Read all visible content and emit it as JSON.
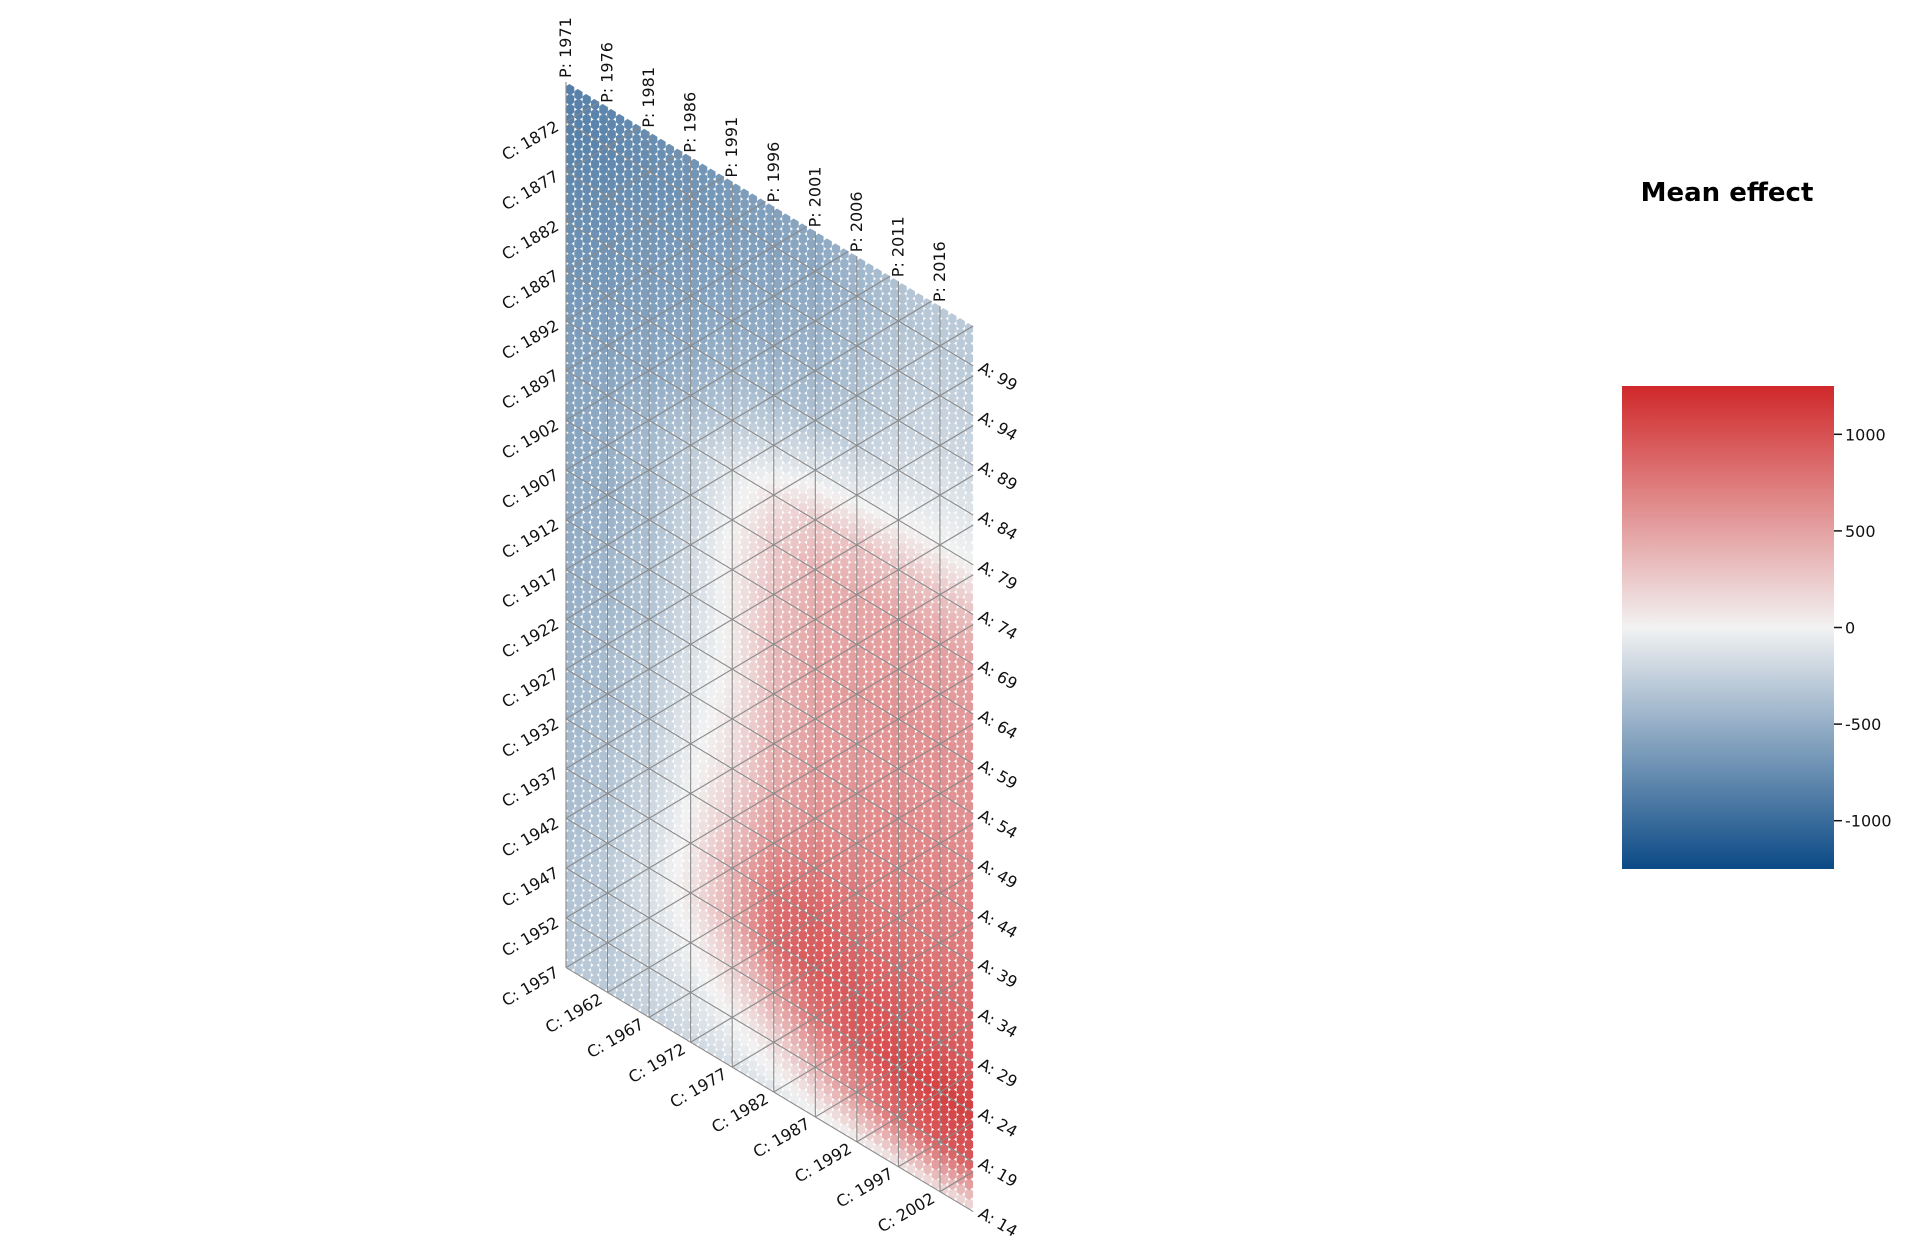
{
  "chart_data": {
    "type": "heatmap",
    "subtype": "hexagonal age-period-cohort diagram",
    "title": "",
    "colorbar": {
      "title": "Mean effect",
      "range": [
        -1250,
        1250
      ],
      "ticks": [
        1000,
        500,
        0,
        -500,
        -1000
      ],
      "tick_labels": [
        "1000",
        "500",
        "0",
        "-500",
        "-1000"
      ],
      "colors": {
        "low": "#0b4a86",
        "mid": "#f2f2f2",
        "high": "#d0282a"
      }
    },
    "period_labels": [
      "P: 1971",
      "P: 1976",
      "P: 1981",
      "P: 1986",
      "P: 1991",
      "P: 1996",
      "P: 2001",
      "P: 2006",
      "P: 2011",
      "P: 2016"
    ],
    "age_labels": [
      "A: 99",
      "A: 94",
      "A: 89",
      "A: 84",
      "A: 79",
      "A: 74",
      "A: 69",
      "A: 64",
      "A: 59",
      "A: 54",
      "A: 49",
      "A: 44",
      "A: 39",
      "A: 34",
      "A: 29",
      "A: 24",
      "A: 19",
      "A: 14"
    ],
    "cohort_labels": [
      "C: 1872",
      "C: 1877",
      "C: 1882",
      "C: 1887",
      "C: 1892",
      "C: 1897",
      "C: 1902",
      "C: 1907",
      "C: 1912",
      "C: 1917",
      "C: 1922",
      "C: 1927",
      "C: 1932",
      "C: 1937",
      "C: 1942",
      "C: 1947",
      "C: 1952",
      "C: 1957",
      "C: 1962",
      "C: 1967",
      "C: 1972",
      "C: 1977",
      "C: 1982",
      "C: 1987",
      "C: 1992",
      "C: 1997",
      "C: 2002"
    ],
    "period_range": [
      1971,
      2020
    ],
    "age_range": [
      14,
      103
    ],
    "grid": true,
    "effect_grid": {
      "description": "approximate mean effect by period (columns) and age (rows)",
      "periods": [
        1971,
        1976,
        1981,
        1986,
        1991,
        1996,
        2001,
        2006,
        2011,
        2016
      ],
      "ages": [
        99,
        94,
        89,
        84,
        79,
        74,
        69,
        64,
        59,
        54,
        49,
        44,
        39,
        34,
        29,
        24,
        19,
        14
      ],
      "values": [
        [
          -850,
          -800,
          -750,
          -700,
          -650,
          -600,
          -550,
          -450,
          -350,
          -300
        ],
        [
          -800,
          -750,
          -700,
          -650,
          -600,
          -550,
          -500,
          -400,
          -300,
          -250
        ],
        [
          -750,
          -700,
          -650,
          -600,
          -550,
          -500,
          -450,
          -350,
          -250,
          -200
        ],
        [
          -700,
          -650,
          -600,
          -550,
          -450,
          -400,
          -350,
          -250,
          -150,
          -100
        ],
        [
          -650,
          -600,
          -550,
          -450,
          -300,
          -200,
          -100,
          -50,
          0,
          0
        ],
        [
          -600,
          -550,
          -450,
          -300,
          -100,
          100,
          250,
          300,
          300,
          300
        ],
        [
          -600,
          -500,
          -400,
          -250,
          0,
          250,
          400,
          450,
          500,
          500
        ],
        [
          -550,
          -500,
          -400,
          -200,
          50,
          300,
          450,
          500,
          550,
          550
        ],
        [
          -550,
          -450,
          -350,
          -200,
          50,
          350,
          500,
          550,
          600,
          600
        ],
        [
          -500,
          -450,
          -350,
          -150,
          50,
          350,
          500,
          550,
          600,
          600
        ],
        [
          -500,
          -400,
          -300,
          -100,
          100,
          400,
          550,
          600,
          650,
          650
        ],
        [
          -450,
          -400,
          -300,
          -50,
          150,
          450,
          600,
          650,
          700,
          700
        ],
        [
          -450,
          -350,
          -250,
          0,
          250,
          600,
          750,
          750,
          750,
          750
        ],
        [
          -400,
          -350,
          -200,
          50,
          400,
          800,
          900,
          850,
          850,
          850
        ],
        [
          -400,
          -300,
          -150,
          100,
          400,
          850,
          950,
          950,
          950,
          950
        ],
        [
          -350,
          -300,
          -150,
          0,
          200,
          500,
          800,
          950,
          1050,
          1100
        ],
        [
          -350,
          -300,
          -200,
          -100,
          0,
          150,
          400,
          650,
          850,
          950
        ],
        [
          -300,
          -300,
          -250,
          -200,
          -150,
          -100,
          -50,
          0,
          50,
          100
        ]
      ]
    }
  }
}
